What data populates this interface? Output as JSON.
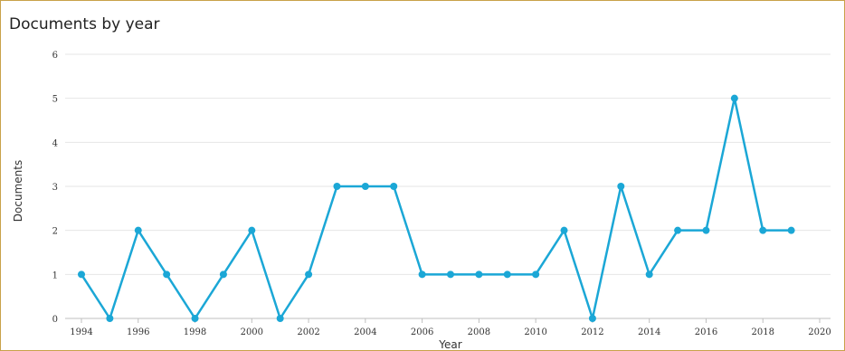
{
  "chart_data": {
    "type": "line",
    "title": "Documents by year",
    "xlabel": "Year",
    "ylabel": "Documents",
    "xlim": [
      1994,
      2020
    ],
    "ylim": [
      0,
      6
    ],
    "x_ticks": [
      1994,
      1996,
      1998,
      2000,
      2002,
      2004,
      2006,
      2008,
      2010,
      2012,
      2014,
      2016,
      2018,
      2020
    ],
    "y_ticks": [
      0,
      1,
      2,
      3,
      4,
      5,
      6
    ],
    "grid": true,
    "line_color": "#1ba7d6",
    "series": [
      {
        "x": [
          1994,
          1995,
          1996,
          1997,
          1998,
          1999,
          2000,
          2001,
          2002,
          2003,
          2004,
          2005,
          2006,
          2007,
          2008,
          2009,
          2010,
          2011,
          2012,
          2013,
          2014,
          2015,
          2016,
          2017,
          2018,
          2019
        ],
        "values": [
          1,
          0,
          2,
          1,
          0,
          1,
          2,
          0,
          1,
          3,
          3,
          3,
          1,
          1,
          1,
          1,
          1,
          2,
          0,
          3,
          1,
          2,
          2,
          5,
          2,
          2
        ]
      }
    ]
  }
}
